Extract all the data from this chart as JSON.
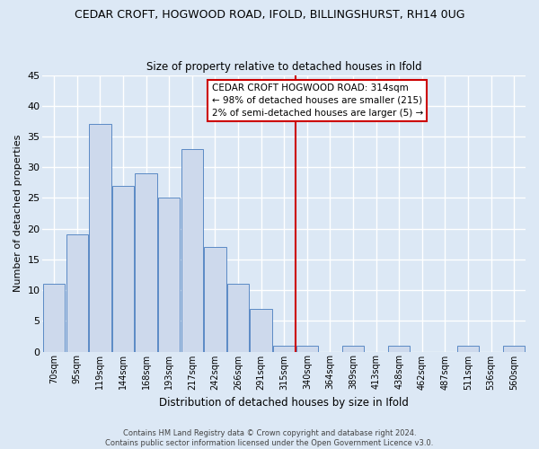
{
  "title": "CEDAR CROFT, HOGWOOD ROAD, IFOLD, BILLINGSHURST, RH14 0UG",
  "subtitle": "Size of property relative to detached houses in Ifold",
  "xlabel": "Distribution of detached houses by size in Ifold",
  "ylabel": "Number of detached properties",
  "bar_labels": [
    "70sqm",
    "95sqm",
    "119sqm",
    "144sqm",
    "168sqm",
    "193sqm",
    "217sqm",
    "242sqm",
    "266sqm",
    "291sqm",
    "315sqm",
    "340sqm",
    "364sqm",
    "389sqm",
    "413sqm",
    "438sqm",
    "462sqm",
    "487sqm",
    "511sqm",
    "536sqm",
    "560sqm"
  ],
  "bar_values": [
    11,
    19,
    37,
    27,
    29,
    25,
    33,
    17,
    11,
    7,
    1,
    1,
    0,
    1,
    0,
    1,
    0,
    0,
    1,
    0,
    1
  ],
  "bar_color": "#cdd9ec",
  "bar_edgecolor": "#5b8ac5",
  "vline_x_idx": 10,
  "vline_color": "#cc0000",
  "annotation_text": "CEDAR CROFT HOGWOOD ROAD: 314sqm\n← 98% of detached houses are smaller (215)\n2% of semi-detached houses are larger (5) →",
  "ylim": [
    0,
    45
  ],
  "yticks": [
    0,
    5,
    10,
    15,
    20,
    25,
    30,
    35,
    40,
    45
  ],
  "background_color": "#dce8f5",
  "grid_color": "#c8d8ea",
  "footer_line1": "Contains HM Land Registry data © Crown copyright and database right 2024.",
  "footer_line2": "Contains public sector information licensed under the Open Government Licence v3.0."
}
